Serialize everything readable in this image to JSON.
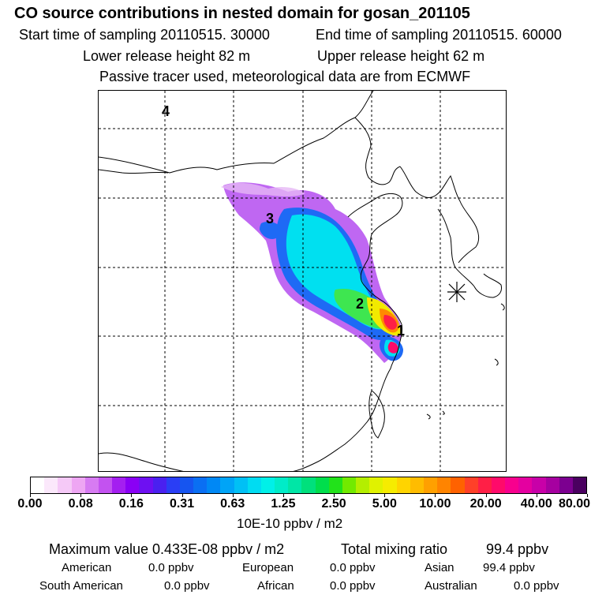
{
  "header": {
    "title": "CO  source contributions in nested domain for gosan_201105",
    "start_label": "Start time of sampling 20110515. 30000",
    "end_label": "End time of sampling 20110515. 60000",
    "lower_label": "Lower release height   82 m",
    "upper_label": "Upper release height   62 m",
    "tracer_label": "Passive tracer used, meteorological data are from ECMWF"
  },
  "map": {
    "labels": [
      "4",
      "3",
      "2",
      "1"
    ],
    "station_marker": "asterisk-marker",
    "colors": {
      "coast": "#000000",
      "grid": "#000000"
    }
  },
  "colorbar": {
    "ticks": [
      "0.00",
      "0.08",
      "0.16",
      "0.31",
      "0.63",
      "1.25",
      "2.50",
      "5.00",
      "10.00",
      "20.00",
      "40.00",
      "80.00"
    ],
    "colors": [
      "#ffffff",
      "#fbe8fb",
      "#f5c9f7",
      "#eea6f3",
      "#d77bf2",
      "#c352f0",
      "#a41ff0",
      "#8a00f5",
      "#6e10f2",
      "#4a20f0",
      "#2a3ef5",
      "#1655f0",
      "#0a6ff3",
      "#0088f5",
      "#00a4f7",
      "#00c0f5",
      "#00dcf2",
      "#00f0e8",
      "#00ecc8",
      "#00e6a6",
      "#00e07c",
      "#00de4c",
      "#22e21a",
      "#72ea00",
      "#b4ee00",
      "#e0f200",
      "#f6ec00",
      "#ffd400",
      "#ffbc00",
      "#ffa000",
      "#ff8400",
      "#ff6200",
      "#ff4028",
      "#ff1f46",
      "#ff0a6a",
      "#f8008e",
      "#e400a0",
      "#c800a8",
      "#a600a0",
      "#7c0090",
      "#4a0060"
    ],
    "units": "10E-10 ppbv / m2"
  },
  "stats": {
    "max_label": "Maximum value  0.433E-08 ppbv / m2",
    "total_label": "Total mixing ratio",
    "total_value": "99.4 ppbv",
    "regions": [
      {
        "name": "American",
        "value": "0.0 ppbv"
      },
      {
        "name": "European",
        "value": "0.0 ppbv"
      },
      {
        "name": "Asian",
        "value": "99.4 ppbv"
      },
      {
        "name": "South American",
        "value": "0.0 ppbv"
      },
      {
        "name": "African",
        "value": "0.0 ppbv"
      },
      {
        "name": "Australian",
        "value": "0.0 ppbv"
      }
    ]
  }
}
